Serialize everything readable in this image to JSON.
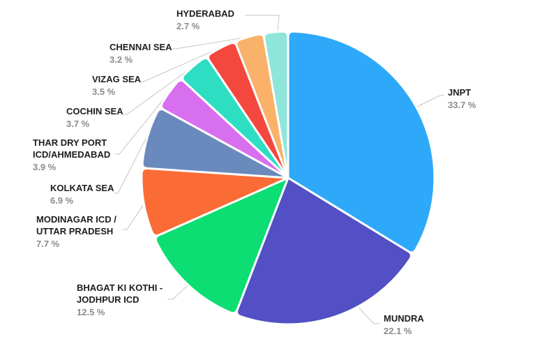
{
  "chart_data": {
    "type": "pie",
    "unit": "%",
    "direction": "clockwise",
    "start_angle_deg": 0,
    "background_color": "#ffffff",
    "label_name_color": "#1d1d1d",
    "label_percent_color": "#8b8b8b",
    "leader_line_color": "#c5c5c5",
    "slice_border_color": "#ffffff",
    "slices": [
      {
        "label": "JNPT",
        "value": 33.7,
        "percent_label": "33.7 %",
        "color": "#2EA9FA"
      },
      {
        "label": "MUNDRA",
        "value": 22.1,
        "percent_label": "22.1 %",
        "color": "#5250C4"
      },
      {
        "label": "BHAGAT KI KOTHI -\nJODHPUR ICD",
        "value": 12.5,
        "percent_label": "12.5 %",
        "color": "#0CDE73"
      },
      {
        "label": "MODINAGAR ICD /\nUTTAR PRADESH",
        "value": 7.7,
        "percent_label": "7.7 %",
        "color": "#FB6B35"
      },
      {
        "label": "KOLKATA SEA",
        "value": 6.9,
        "percent_label": "6.9 %",
        "color": "#6A8ABD"
      },
      {
        "label": "THAR DRY PORT\nICD/AHMEDABAD",
        "value": 3.9,
        "percent_label": "3.9 %",
        "color": "#D76FEE"
      },
      {
        "label": "COCHIN SEA",
        "value": 3.7,
        "percent_label": "3.7 %",
        "color": "#2EDEC3"
      },
      {
        "label": "VIZAG SEA",
        "value": 3.5,
        "percent_label": "3.5 %",
        "color": "#F4473D"
      },
      {
        "label": "CHENNAI SEA",
        "value": 3.2,
        "percent_label": "3.2 %",
        "color": "#FAB169"
      },
      {
        "label": "HYDERABAD",
        "value": 2.7,
        "percent_label": "2.7 %",
        "color": "#90E5DB"
      }
    ]
  }
}
